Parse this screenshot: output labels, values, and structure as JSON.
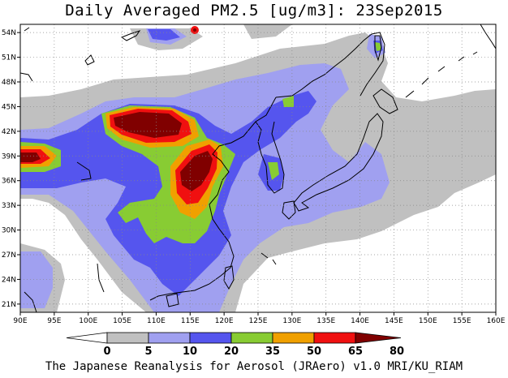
{
  "title": "Daily Averaged PM2.5 [ug/m3]: 23Sep2015",
  "credit": "The Japanese Reanalysis for Aerosol (JRAero) v1.0 MRI/KU_RIAM",
  "map": {
    "lon_range": [
      90,
      160
    ],
    "lat_range": [
      20,
      55
    ],
    "x_ticks": [
      "90E",
      "95E",
      "100E",
      "105E",
      "110E",
      "115E",
      "120E",
      "125E",
      "130E",
      "135E",
      "140E",
      "145E",
      "150E",
      "155E",
      "160E"
    ],
    "y_ticks": [
      "21N",
      "24N",
      "27N",
      "30N",
      "33N",
      "36N",
      "39N",
      "42N",
      "45N",
      "48N",
      "51N",
      "54N"
    ],
    "grid": "dotted"
  },
  "colorbar": {
    "levels": [
      "0",
      "5",
      "10",
      "20",
      "35",
      "50",
      "65",
      "80"
    ],
    "colors": [
      "#ffffff",
      "#c0c0c0",
      "#a0a0f0",
      "#5555ee",
      "#88cc33",
      "#f0a000",
      "#f01010",
      "#800000"
    ]
  }
}
